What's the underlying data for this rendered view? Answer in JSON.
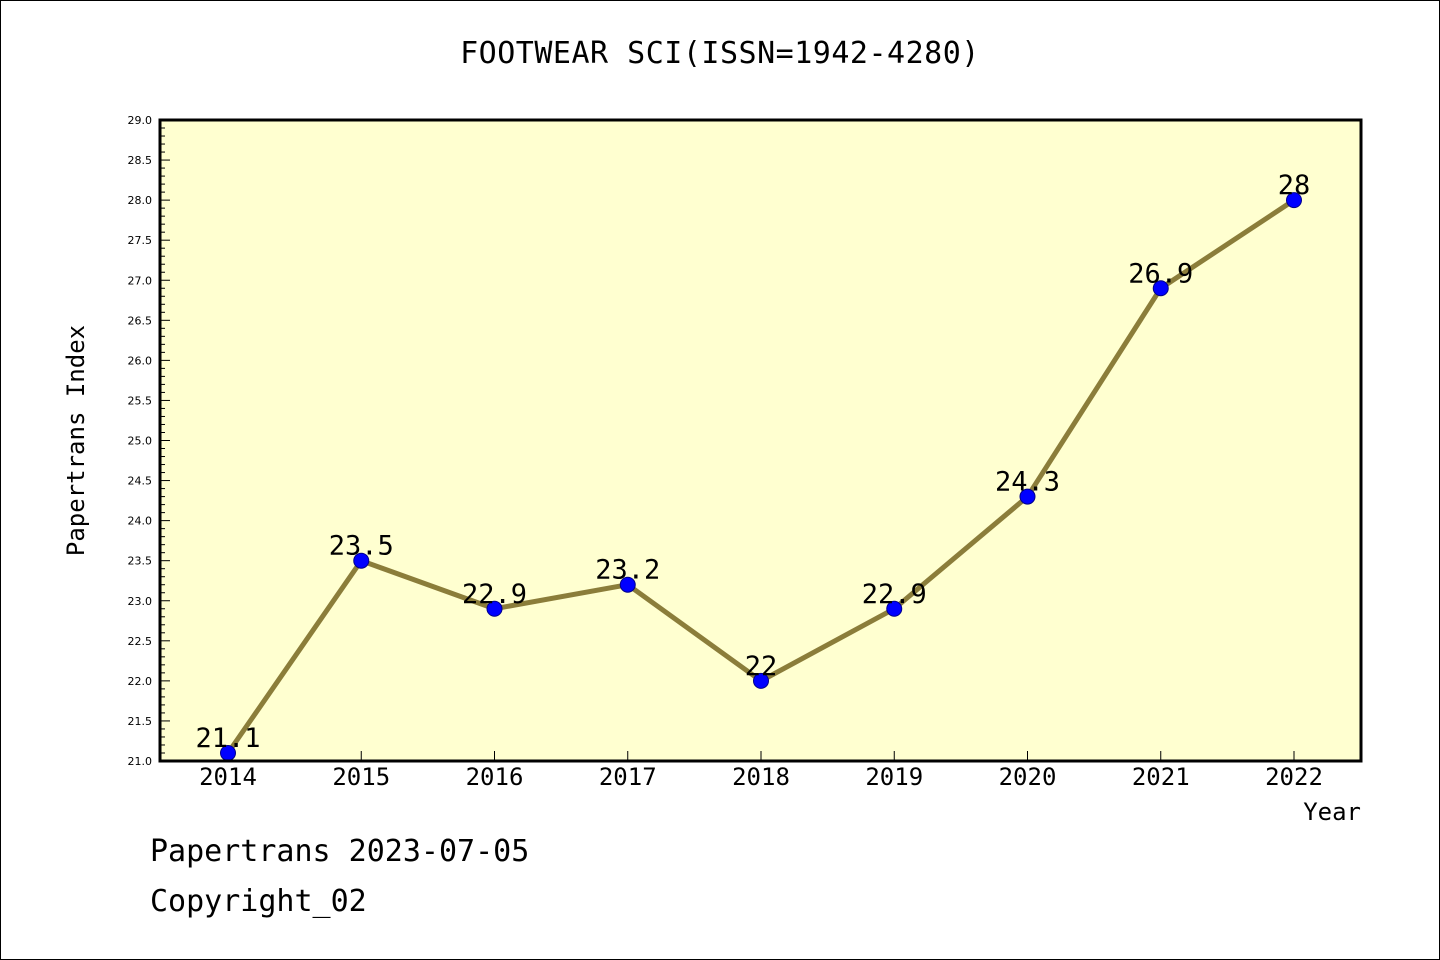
{
  "chart_data": {
    "type": "line",
    "title": "FOOTWEAR SCI(ISSN=1942-4280)",
    "xlabel": "Year",
    "ylabel": "Papertrans Index",
    "categories": [
      "2014",
      "2015",
      "2016",
      "2017",
      "2018",
      "2019",
      "2020",
      "2021",
      "2022"
    ],
    "values": [
      21.1,
      23.5,
      22.9,
      23.2,
      22,
      22.9,
      24.3,
      26.9,
      28
    ],
    "data_labels": [
      "21.1",
      "23.5",
      "22.9",
      "23.2",
      "22",
      "22.9",
      "24.3",
      "26.9",
      "28"
    ],
    "ylim": [
      21.0,
      29.0
    ],
    "y_ticks": [
      "21.0",
      "21.5",
      "22.0",
      "22.5",
      "23.0",
      "23.5",
      "24.0",
      "24.5",
      "25.0",
      "25.5",
      "26.0",
      "26.5",
      "27.0",
      "27.5",
      "28.0",
      "28.5",
      "29.0"
    ],
    "grid": false,
    "colors": {
      "plot_background": "#ffffd0",
      "line": "#8b7d3a",
      "marker_fill": "#0000ff",
      "marker_edge": "#00008b"
    }
  },
  "footer": {
    "line1": "Papertrans 2023-07-05",
    "line2": "Copyright_02"
  }
}
